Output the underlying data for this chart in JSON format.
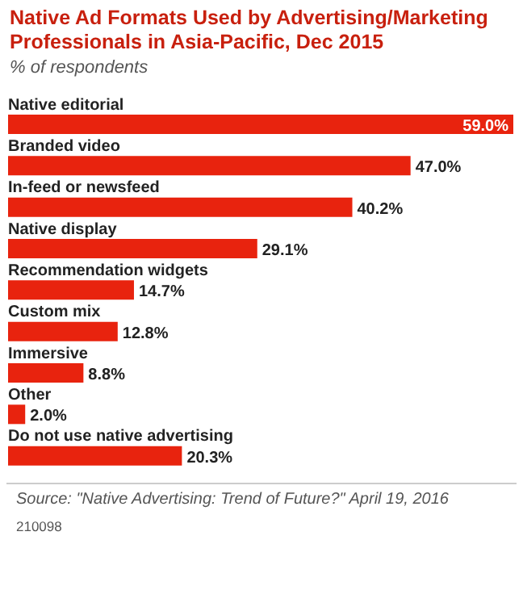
{
  "chart_data": {
    "type": "bar",
    "orientation": "horizontal",
    "title": "Native Ad Formats Used by Advertising/Marketing Professionals in Asia-Pacific, Dec 2015",
    "subtitle": "% of respondents",
    "categories": [
      "Native editorial",
      "Branded video",
      "In-feed or newsfeed",
      "Native display",
      "Recommendation widgets",
      "Custom mix",
      "Immersive",
      "Other",
      "Do not use native advertising"
    ],
    "values": [
      59.0,
      47.0,
      40.2,
      29.1,
      14.7,
      12.8,
      8.8,
      2.0,
      20.3
    ],
    "value_labels": [
      "59.0%",
      "47.0%",
      "40.2%",
      "29.1%",
      "14.7%",
      "12.8%",
      "8.8%",
      "2.0%",
      "20.3%"
    ],
    "color": "#e8230e",
    "annotations": [
      "Source: \"Native Advertising: Trend of Future?\" April 19, 2016",
      "210098"
    ]
  }
}
